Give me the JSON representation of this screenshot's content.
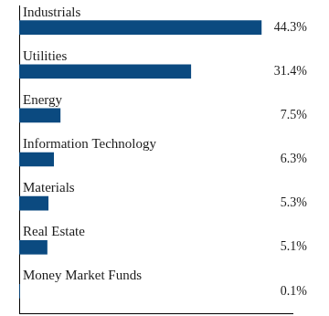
{
  "chart_data": {
    "type": "bar",
    "orientation": "horizontal",
    "categories": [
      "Industrials",
      "Utilities",
      "Energy",
      "Information Technology",
      "Materials",
      "Real Estate",
      "Money Market Funds"
    ],
    "values": [
      44.3,
      31.4,
      7.5,
      6.3,
      5.3,
      5.1,
      0.1
    ],
    "value_labels": [
      "44.3%",
      "31.4%",
      "7.5%",
      "6.3%",
      "5.3%",
      "5.1%",
      "0.1%"
    ],
    "color": "#0b4a80",
    "xlim": [
      0,
      50
    ],
    "grid": false,
    "data_labels": true,
    "tick_labels": false
  }
}
